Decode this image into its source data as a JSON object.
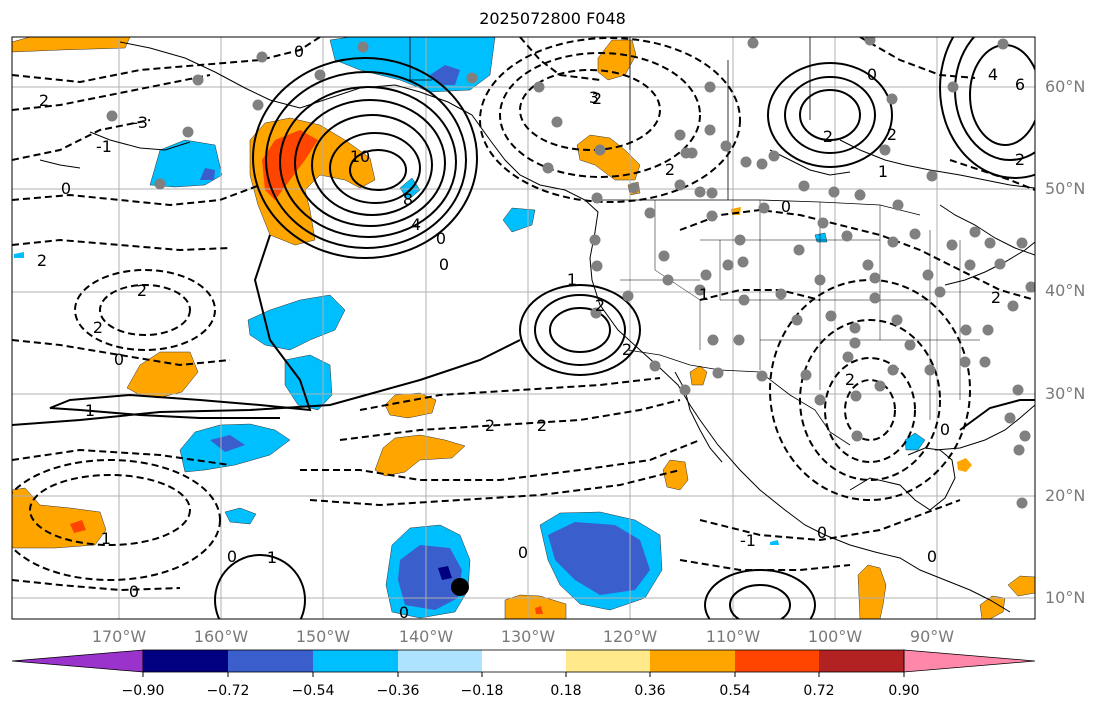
{
  "title": "2025072800 F048",
  "map": {
    "lat_labels": [
      "60°N",
      "50°N",
      "40°N",
      "30°N",
      "20°N",
      "10°N"
    ],
    "lon_labels": [
      "170°W",
      "160°W",
      "150°W",
      "140°W",
      "130°W",
      "120°W",
      "110°W",
      "100°W",
      "90°W"
    ],
    "contour_labels": [
      "0",
      "1",
      "2",
      "3",
      "4",
      "6",
      "8",
      "10",
      "-1",
      "-2",
      "-3"
    ],
    "colors": {
      "ocean_background": "#ffffff",
      "gridline": "#b0b0b0",
      "coast": "#000000",
      "station_marker": "#808080",
      "marker": "#000000"
    }
  },
  "colorbar": {
    "colors": [
      "#9933cc",
      "#000080",
      "#3a5fcd",
      "#00bfff",
      "#aee3ff",
      "#ffffff",
      "#ffe98a",
      "#ffa500",
      "#ff4500",
      "#b22222",
      "#ff88aa"
    ],
    "tick_labels": [
      "−0.90",
      "−0.72",
      "−0.54",
      "−0.36",
      "−0.18",
      "0.18",
      "0.36",
      "0.54",
      "0.72",
      "0.90"
    ],
    "extend": "both"
  }
}
